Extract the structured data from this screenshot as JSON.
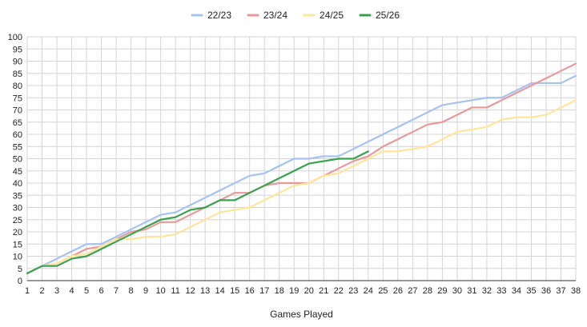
{
  "chart_data": {
    "type": "line",
    "title": "",
    "xlabel": "Games Played",
    "ylabel": "",
    "xlim": [
      1,
      38
    ],
    "ylim": [
      0,
      100
    ],
    "x_ticks": [
      1,
      2,
      3,
      4,
      5,
      6,
      7,
      8,
      9,
      10,
      11,
      12,
      13,
      14,
      15,
      16,
      17,
      18,
      19,
      20,
      21,
      22,
      23,
      24,
      25,
      26,
      27,
      28,
      29,
      30,
      31,
      32,
      33,
      34,
      35,
      36,
      37,
      38
    ],
    "y_ticks": [
      0,
      5,
      10,
      15,
      20,
      25,
      30,
      35,
      40,
      45,
      50,
      55,
      60,
      65,
      70,
      75,
      80,
      85,
      90,
      95,
      100
    ],
    "grid": true,
    "legend_position": "top",
    "series": [
      {
        "name": "22/23",
        "color": "#a4c2f4",
        "x": [
          1,
          2,
          3,
          4,
          5,
          6,
          7,
          8,
          9,
          10,
          11,
          12,
          13,
          14,
          15,
          16,
          17,
          18,
          19,
          20,
          21,
          22,
          23,
          24,
          25,
          26,
          27,
          28,
          29,
          30,
          31,
          32,
          33,
          34,
          35,
          36,
          37,
          38
        ],
        "values": [
          3,
          6,
          9,
          12,
          15,
          15,
          18,
          21,
          24,
          27,
          28,
          31,
          34,
          37,
          40,
          43,
          44,
          47,
          50,
          50,
          51,
          51,
          54,
          57,
          60,
          63,
          66,
          69,
          72,
          73,
          74,
          75,
          75,
          78,
          81,
          81,
          81,
          84
        ]
      },
      {
        "name": "23/24",
        "color": "#ea9999",
        "x": [
          1,
          2,
          3,
          4,
          5,
          6,
          7,
          8,
          9,
          10,
          11,
          12,
          13,
          14,
          15,
          16,
          17,
          18,
          19,
          20,
          21,
          22,
          23,
          24,
          25,
          26,
          27,
          28,
          29,
          30,
          31,
          32,
          33,
          34,
          35,
          36,
          37,
          38
        ],
        "values": [
          3,
          6,
          7,
          10,
          13,
          14,
          17,
          20,
          21,
          24,
          24,
          27,
          30,
          33,
          36,
          36,
          39,
          40,
          40,
          40,
          43,
          46,
          49,
          51,
          55,
          58,
          61,
          64,
          65,
          68,
          71,
          71,
          74,
          77,
          80,
          83,
          86,
          89
        ]
      },
      {
        "name": "24/25",
        "color": "#ffe599",
        "x": [
          1,
          2,
          3,
          4,
          5,
          6,
          7,
          8,
          9,
          10,
          11,
          12,
          13,
          14,
          15,
          16,
          17,
          18,
          19,
          20,
          21,
          22,
          23,
          24,
          25,
          26,
          27,
          28,
          29,
          30,
          31,
          32,
          33,
          34,
          35,
          36,
          37,
          38
        ],
        "values": [
          3,
          6,
          7,
          10,
          11,
          14,
          17,
          17,
          18,
          18,
          19,
          22,
          25,
          28,
          29,
          30,
          33,
          36,
          39,
          40,
          43,
          44,
          47,
          50,
          53,
          53,
          54,
          55,
          58,
          61,
          62,
          63,
          66,
          67,
          67,
          68,
          71,
          74
        ]
      },
      {
        "name": "25/26",
        "color": "#38a150",
        "x": [
          1,
          2,
          3,
          4,
          5,
          6,
          7,
          8,
          9,
          10,
          11,
          12,
          13,
          14,
          15,
          16,
          17,
          18,
          19,
          20,
          21,
          22,
          23,
          24
        ],
        "values": [
          3,
          6,
          6,
          9,
          10,
          13,
          16,
          19,
          22,
          25,
          26,
          29,
          30,
          33,
          33,
          36,
          39,
          42,
          45,
          48,
          49,
          50,
          50,
          53
        ]
      }
    ]
  }
}
